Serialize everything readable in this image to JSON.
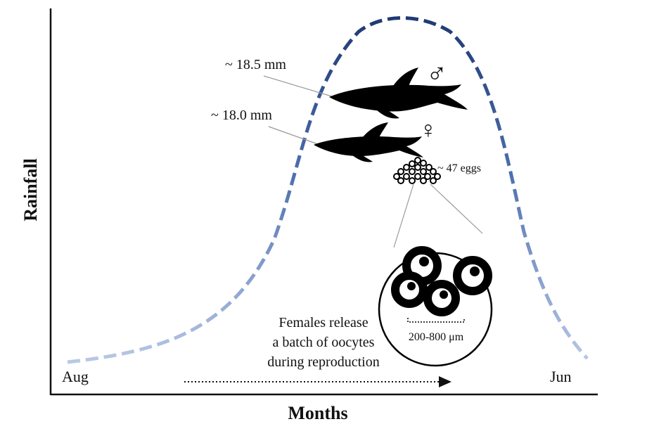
{
  "axes": {
    "y_label": "Rainfall",
    "x_label": "Months",
    "start_month": "Aug",
    "end_month": "Jun"
  },
  "male": {
    "size": "~ 18.5 mm",
    "symbol": "♂"
  },
  "female": {
    "size": "~ 18.0 mm",
    "symbol": "♀"
  },
  "eggs": {
    "count": "~ 47 eggs",
    "size_range": "200-800 μm"
  },
  "note_lines": [
    "Females release",
    "a batch of oocytes",
    "during reproduction"
  ],
  "colors": {
    "curve_dark": "#1f3a73",
    "curve_light": "#b8c8e6",
    "ink": "#111111"
  }
}
